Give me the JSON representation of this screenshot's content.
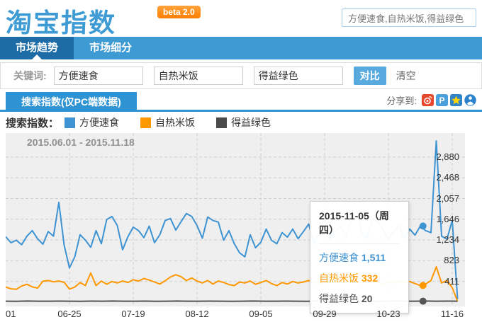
{
  "header": {
    "logo": "淘宝指数",
    "beta_badge": "beta 2.0",
    "search_value": "方便速食,自热米饭,得益绿色"
  },
  "nav": {
    "tabs": [
      {
        "label": "市场趋势",
        "active": true
      },
      {
        "label": "市场细分",
        "active": false
      }
    ]
  },
  "keyword_bar": {
    "label": "关键词:",
    "keywords": [
      "方便速食",
      "自热米饭",
      "得益绿色"
    ],
    "compare_label": "对比",
    "clear_label": "清空"
  },
  "section": {
    "tab_label": "搜索指数(仅PC端数据)",
    "share_label": "分享到:",
    "share_icons": [
      "sina-weibo-icon",
      "tencent-weibo-icon",
      "qzone-icon",
      "share-person-icon"
    ]
  },
  "legend": {
    "title": "搜索指数：",
    "items": [
      {
        "name": "方便速食",
        "color": "#3e93d2"
      },
      {
        "name": "自热米饭",
        "color": "#ff9800"
      },
      {
        "name": "得益绿色",
        "color": "#4a4a4a"
      }
    ]
  },
  "chart_data": {
    "type": "line",
    "title": "2015.06.01 - 2015.11.18",
    "x_range": [
      "2015-06-01",
      "2015-11-18"
    ],
    "days_total": 170,
    "x_tick_labels": [
      "01",
      "06-25",
      "07-19",
      "08-12",
      "09-05",
      "09-29",
      "10-23",
      "11-16"
    ],
    "x_tick_days": [
      0,
      24,
      48,
      72,
      96,
      120,
      144,
      168
    ],
    "y_tick_labels": [
      "411",
      "823",
      "1,234",
      "1,646",
      "2,057",
      "2,468",
      "2,880"
    ],
    "y_tick_values": [
      411,
      823,
      1234,
      1646,
      2057,
      2468,
      2880
    ],
    "ylim": [
      0,
      3356
    ],
    "grid": "dashed",
    "legend_position": "top",
    "series": [
      {
        "name": "方便速食",
        "color": "#3e93d2",
        "values": [
          1300,
          1180,
          1230,
          1140,
          1310,
          1420,
          1260,
          1150,
          1400,
          1310,
          1980,
          1130,
          680,
          900,
          1340,
          1230,
          1090,
          1420,
          1160,
          1640,
          1700,
          1520,
          1040,
          1300,
          1490,
          1420,
          1280,
          1510,
          1180,
          1340,
          1620,
          1660,
          1430,
          1600,
          1760,
          1700,
          1520,
          1270,
          1690,
          1620,
          1590,
          1230,
          1420,
          1160,
          980,
          900,
          1340,
          1080,
          1190,
          1450,
          1230,
          1160,
          1380,
          1290,
          1450,
          1260,
          1400,
          1550,
          1160,
          1390,
          1690,
          1250,
          1400,
          1520,
          1310,
          1620,
          1840,
          1380,
          1270,
          1650,
          1590,
          1440,
          1250,
          1400,
          1530,
          1270,
          1450,
          1330,
          1511,
          1420,
          1380,
          3200,
          1310,
          1250,
          1620,
          60
        ]
      },
      {
        "name": "自热米饭",
        "color": "#ff9800",
        "values": [
          300,
          265,
          255,
          320,
          355,
          305,
          280,
          415,
          430,
          405,
          420,
          395,
          260,
          300,
          390,
          330,
          580,
          330,
          420,
          355,
          410,
          380,
          420,
          390,
          445,
          420,
          470,
          440,
          400,
          360,
          425,
          500,
          545,
          505,
          430,
          480,
          420,
          380,
          430,
          360,
          420,
          390,
          350,
          330,
          400,
          380,
          420,
          355,
          390,
          430,
          370,
          330,
          390,
          360,
          410,
          380,
          400,
          430,
          390,
          355,
          420,
          390,
          445,
          410,
          380,
          430,
          400,
          370,
          410,
          445,
          390,
          355,
          400,
          380,
          420,
          390,
          410,
          370,
          332,
          360,
          430,
          700,
          380,
          430,
          290,
          15
        ]
      },
      {
        "name": "得益绿色",
        "color": "#555555",
        "values": [
          20,
          18,
          22,
          20,
          19,
          21,
          20,
          18,
          21,
          20,
          22,
          19,
          20,
          21,
          18,
          20,
          22,
          20,
          19,
          21,
          20,
          18,
          20,
          22,
          19,
          20,
          21,
          20,
          18,
          21,
          20,
          19,
          22,
          20,
          18,
          20,
          21,
          19,
          20,
          22,
          19,
          21,
          20
        ]
      }
    ],
    "hover_markers": [
      {
        "series": "方便速食",
        "day": 157,
        "value": 1511
      },
      {
        "series": "自热米饭",
        "day": 157,
        "value": 332
      },
      {
        "series": "得益绿色",
        "day": 157,
        "value": 20
      }
    ]
  },
  "tooltip": {
    "title": "2015-11-05（周四）",
    "rows": [
      {
        "name": "方便速食",
        "value": "1,511"
      },
      {
        "name": "自热米饭",
        "value": "332"
      },
      {
        "name": "得益绿色",
        "value": "20"
      }
    ]
  }
}
